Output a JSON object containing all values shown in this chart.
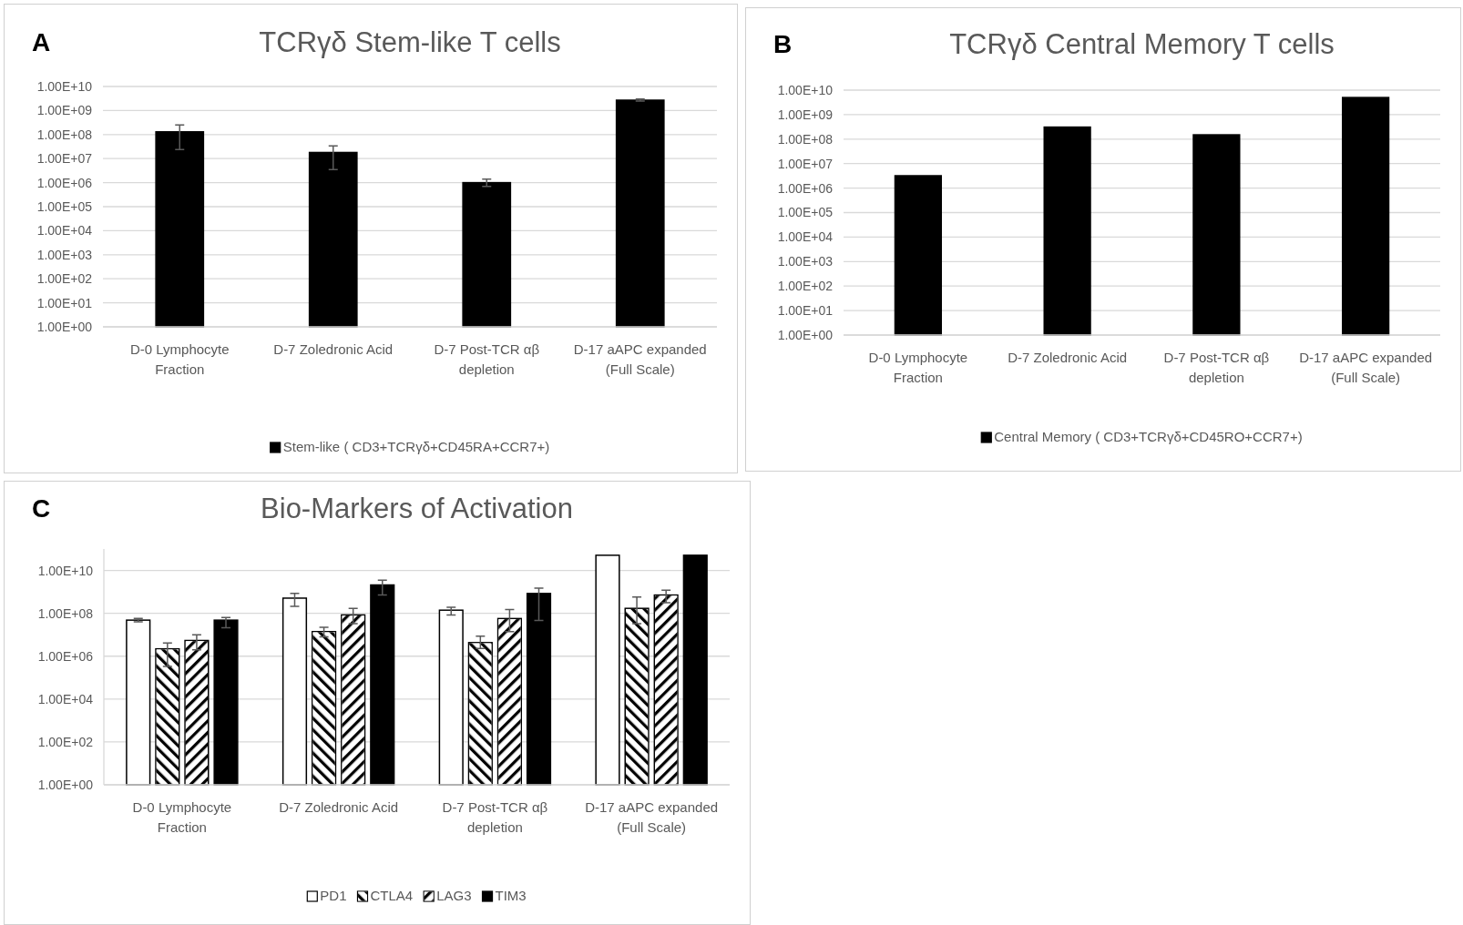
{
  "chart_data": [
    {
      "type": "bar",
      "title": "TCRγδ Stem-like T cells",
      "annotations": [
        "A"
      ],
      "categories": [
        "D-0 Lymphocyte Fraction",
        "D-7 Zoledronic   Acid",
        "D-7 Post-TCR αβ depletion",
        "D-17 aAPC expanded (Full Scale)"
      ],
      "series": [
        {
          "name": "Stem-like ( CD3+TCRγδ+CD45RA+CCR7+)",
          "color": "#000000",
          "values": [
            130000000.0,
            18000000.0,
            1000000.0,
            2700000000.0
          ],
          "errors": [
            [
              24000000.0,
              250000000.0
            ],
            [
              3500000.0,
              34000000.0
            ],
            [
              700000.0,
              1400000.0
            ],
            [
              2500000000.0,
              3000000000.0
            ]
          ]
        }
      ],
      "log": true,
      "ylim": [
        1,
        10000000000.0
      ],
      "yticks": [
        {
          "value": 1,
          "label": "1.00E+00"
        },
        {
          "value": 10,
          "label": "1.00E+01"
        },
        {
          "value": 100,
          "label": "1.00E+02"
        },
        {
          "value": 1000,
          "label": "1.00E+03"
        },
        {
          "value": 10000.0,
          "label": "1.00E+04"
        },
        {
          "value": 100000.0,
          "label": "1.00E+05"
        },
        {
          "value": 1000000.0,
          "label": "1.00E+06"
        },
        {
          "value": 10000000.0,
          "label": "1.00E+07"
        },
        {
          "value": 100000000.0,
          "label": "1.00E+08"
        },
        {
          "value": 1000000000.0,
          "label": "1.00E+09"
        },
        {
          "value": 10000000000.0,
          "label": "1.00E+10"
        }
      ],
      "grid": "y",
      "legend": "bottom"
    },
    {
      "type": "bar",
      "title": "TCRγδ Central Memory T cells",
      "annotations": [
        "B"
      ],
      "categories": [
        "D-0 Lymphocyte Fraction",
        "D-7 Zoledronic   Acid",
        "D-7 Post-TCR αβ depletion",
        "D-17 aAPC expanded (Full Scale)"
      ],
      "series": [
        {
          "name": "Central Memory ( CD3+TCRγδ+CD45RO+CCR7+)",
          "color": "#000000",
          "values": [
            3200000.0,
            310000000.0,
            150000000.0,
            5000000000.0
          ]
        }
      ],
      "log": true,
      "ylim": [
        1,
        10000000000.0
      ],
      "yticks": [
        {
          "value": 1,
          "label": "1.00E+00"
        },
        {
          "value": 10,
          "label": "1.00E+01"
        },
        {
          "value": 100,
          "label": "1.00E+02"
        },
        {
          "value": 1000,
          "label": "1.00E+03"
        },
        {
          "value": 10000.0,
          "label": "1.00E+04"
        },
        {
          "value": 100000.0,
          "label": "1.00E+05"
        },
        {
          "value": 1000000.0,
          "label": "1.00E+06"
        },
        {
          "value": 10000000.0,
          "label": "1.00E+07"
        },
        {
          "value": 100000000.0,
          "label": "1.00E+08"
        },
        {
          "value": 1000000000.0,
          "label": "1.00E+09"
        },
        {
          "value": 10000000000.0,
          "label": "1.00E+10"
        }
      ],
      "grid": "y",
      "legend": "bottom"
    },
    {
      "type": "bar",
      "title": "Bio-Markers of Activation",
      "annotations": [
        "C"
      ],
      "categories": [
        "D-0 Lymphocyte Fraction",
        "D-7 Zoledronic   Acid",
        "D-7 Post-TCR αβ depletion",
        "D-17 aAPC expanded (Full Scale)"
      ],
      "series": [
        {
          "name": "PD1",
          "color": "#ffffff",
          "values": [
            48000000.0,
            510000000.0,
            140000000.0,
            51000000000.0
          ],
          "errors": [
            [
              40000000.0,
              58000000.0
            ],
            [
              210000000.0,
              840000000.0
            ],
            [
              84000000.0,
              190000000.0
            ],
            null
          ]
        },
        {
          "name": "CTLA4",
          "color": "#ffffff",
          "values": [
            2200000.0,
            14000000.0,
            4300000.0,
            170000000.0
          ],
          "errors": [
            [
              330000.0,
              4100000.0
            ],
            [
              8000000.0,
              22000000.0
            ],
            [
              2300000.0,
              8500000.0
            ],
            [
              33000000.0,
              570000000.0
            ]
          ]
        },
        {
          "name": "LAG3",
          "color": "#ffffff",
          "values": [
            5400000.0,
            84000000.0,
            57000000.0,
            710000000.0
          ],
          "errors": [
            [
              2000000.0,
              10000000.0
            ],
            [
              33000000.0,
              170000000.0
            ],
            [
              14000000.0,
              150000000.0
            ],
            [
              310000000.0,
              1200000000.0
            ]
          ]
        },
        {
          "name": "TIM3",
          "color": "#000000",
          "values": [
            48000000.0,
            2100000000.0,
            840000000.0,
            51000000000.0
          ],
          "errors": [
            [
              21000000.0,
              64000000.0
            ],
            [
              710000000.0,
              3500000000.0
            ],
            [
              46000000.0,
              1500000000.0
            ],
            null
          ]
        }
      ],
      "log": true,
      "ylim": [
        1,
        100000000000.0
      ],
      "yticks": [
        {
          "value": 1,
          "label": "1.00E+00"
        },
        {
          "value": 100,
          "label": "1.00E+02"
        },
        {
          "value": 10000.0,
          "label": "1.00E+04"
        },
        {
          "value": 1000000.0,
          "label": "1.00E+06"
        },
        {
          "value": 100000000.0,
          "label": "1.00E+08"
        },
        {
          "value": 10000000000.0,
          "label": "1.00E+10"
        }
      ],
      "grid": "y",
      "legend": "bottom"
    }
  ]
}
